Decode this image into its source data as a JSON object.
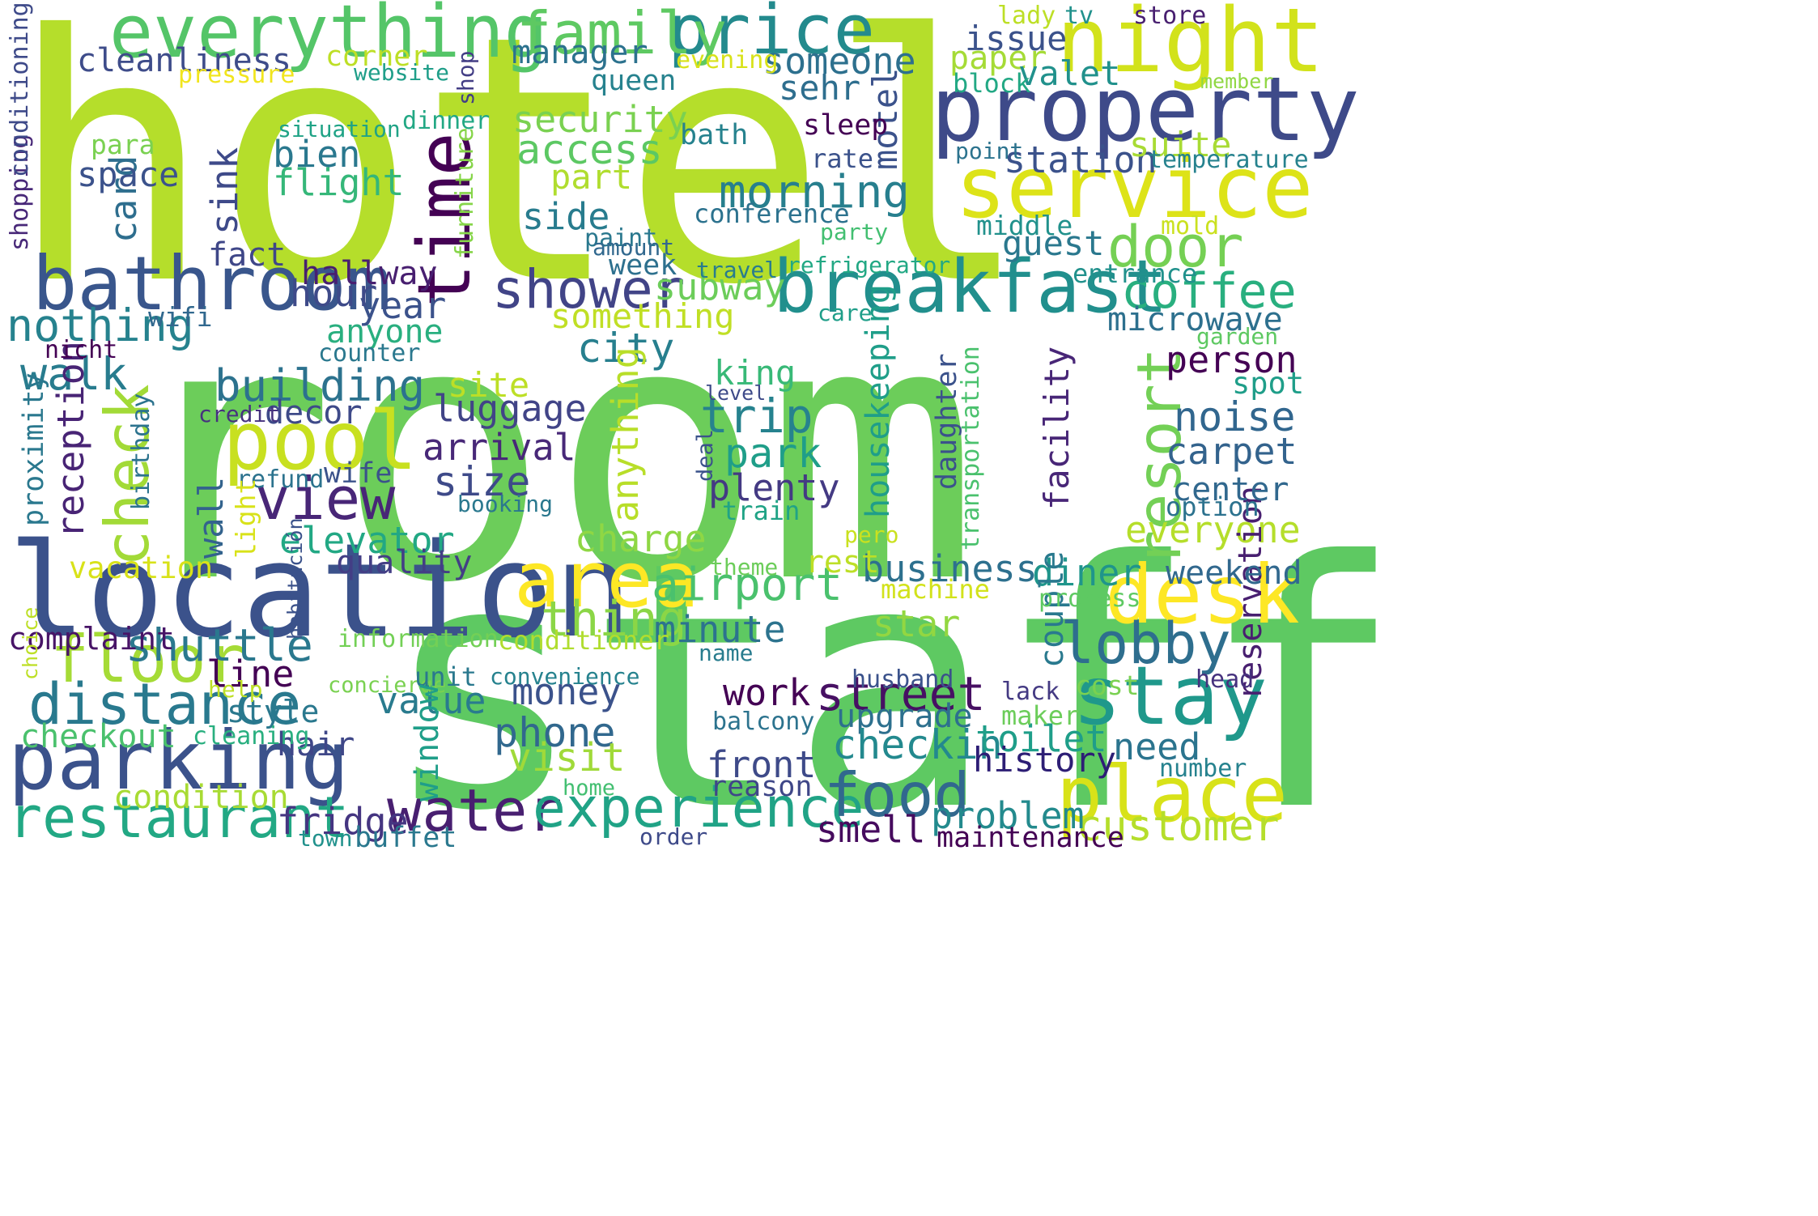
{
  "words": [
    {
      "text": "hotel",
      "color": "#b5de2b"
    },
    {
      "text": "room",
      "color": "#6ccd5a"
    },
    {
      "text": "staff",
      "color": "#5ec962"
    },
    {
      "text": "location",
      "color": "#3b528b"
    },
    {
      "text": "night",
      "color": "#d2e21b"
    },
    {
      "text": "property",
      "color": "#3e4a89"
    },
    {
      "text": "service",
      "color": "#dde318"
    },
    {
      "text": "breakfast",
      "color": "#218f8d"
    },
    {
      "text": "bathroom",
      "color": "#39568c"
    },
    {
      "text": "everything",
      "color": "#54c568"
    },
    {
      "text": "parking",
      "color": "#3b528b"
    },
    {
      "text": "pool",
      "color": "#c8e020"
    },
    {
      "text": "time",
      "color": "#440154"
    },
    {
      "text": "area",
      "color": "#fde725"
    },
    {
      "text": "desk",
      "color": "#fde725"
    },
    {
      "text": "stay",
      "color": "#1f988b"
    },
    {
      "text": "place",
      "color": "#d8e219"
    },
    {
      "text": "price",
      "color": "#238a8d"
    },
    {
      "text": "family",
      "color": "#5ec962"
    },
    {
      "text": "check",
      "color": "#a2da37"
    },
    {
      "text": "resort",
      "color": "#73d056"
    },
    {
      "text": "floor",
      "color": "#a5db36"
    },
    {
      "text": "distance",
      "color": "#29798e"
    },
    {
      "text": "restaurant",
      "color": "#22a884"
    },
    {
      "text": "water",
      "color": "#481f70"
    },
    {
      "text": "experience",
      "color": "#20a386"
    },
    {
      "text": "food",
      "color": "#31688e"
    },
    {
      "text": "lobby",
      "color": "#2e6e8e"
    },
    {
      "text": "view",
      "color": "#482677"
    },
    {
      "text": "shower",
      "color": "#414487"
    },
    {
      "text": "door",
      "color": "#75d054"
    },
    {
      "text": "coffee",
      "color": "#29af7f"
    },
    {
      "text": "airport",
      "color": "#4ac16d"
    },
    {
      "text": "street",
      "color": "#471063"
    },
    {
      "text": "shuttle",
      "color": "#2a788e"
    },
    {
      "text": "morning",
      "color": "#277f8e"
    },
    {
      "text": "building",
      "color": "#2c728e"
    },
    {
      "text": "customer",
      "color": "#b5de2b"
    },
    {
      "text": "nothing",
      "color": "#26828e"
    },
    {
      "text": "walk",
      "color": "#287c8e"
    },
    {
      "text": "cleanliness",
      "color": "#3e4c8a"
    },
    {
      "text": "security",
      "color": "#7ad151"
    },
    {
      "text": "access",
      "color": "#5cc863"
    },
    {
      "text": "trip",
      "color": "#26828e"
    },
    {
      "text": "park",
      "color": "#1f9e89"
    },
    {
      "text": "luggage",
      "color": "#414487"
    },
    {
      "text": "arrival",
      "color": "#482878"
    },
    {
      "text": "size",
      "color": "#3e4a89"
    },
    {
      "text": "plenty",
      "color": "#443a83"
    },
    {
      "text": "site",
      "color": "#bddf26"
    },
    {
      "text": "king",
      "color": "#38b977"
    },
    {
      "text": "elevator",
      "color": "#22a884"
    },
    {
      "text": "charge",
      "color": "#8fd744"
    },
    {
      "text": "business",
      "color": "#2d708e"
    },
    {
      "text": "diner",
      "color": "#1f958b"
    },
    {
      "text": "noise",
      "color": "#31668e"
    },
    {
      "text": "carpet",
      "color": "#33638d"
    },
    {
      "text": "person",
      "color": "#440154"
    },
    {
      "text": "everyone",
      "color": "#b5de2b"
    },
    {
      "text": "thing",
      "color": "#8bd646"
    },
    {
      "text": "minute",
      "color": "#2c738e"
    },
    {
      "text": "star",
      "color": "#93d741"
    },
    {
      "text": "money",
      "color": "#3b528b"
    },
    {
      "text": "phone",
      "color": "#31688e"
    },
    {
      "text": "visit",
      "color": "#a0da39"
    },
    {
      "text": "value",
      "color": "#297b8e"
    },
    {
      "text": "work",
      "color": "#440154"
    },
    {
      "text": "upgrade",
      "color": "#2d708e"
    },
    {
      "text": "checkin",
      "color": "#23898e"
    },
    {
      "text": "toilet",
      "color": "#1f9e89"
    },
    {
      "text": "need",
      "color": "#2b748e"
    },
    {
      "text": "history",
      "color": "#2d1e75"
    },
    {
      "text": "front",
      "color": "#3e4a89"
    },
    {
      "text": "reason",
      "color": "#3f4788"
    },
    {
      "text": "problem",
      "color": "#238a8d"
    },
    {
      "text": "smell",
      "color": "#460b5e"
    },
    {
      "text": "fridge",
      "color": "#453581"
    },
    {
      "text": "condition",
      "color": "#a8db34"
    },
    {
      "text": "checkout",
      "color": "#4ac16d"
    },
    {
      "text": "hair",
      "color": "#3f4788"
    },
    {
      "text": "style",
      "color": "#2a788e"
    },
    {
      "text": "line",
      "color": "#440154"
    },
    {
      "text": "complaint",
      "color": "#481467"
    },
    {
      "text": "quality",
      "color": "#433e85"
    },
    {
      "text": "vacation",
      "color": "#d8e219"
    },
    {
      "text": "reception",
      "color": "#482475"
    },
    {
      "text": "wall",
      "color": "#33638d"
    },
    {
      "text": "proximity",
      "color": "#2a788e"
    },
    {
      "text": "birthday",
      "color": "#2c738e"
    },
    {
      "text": "wife",
      "color": "#3b528b"
    },
    {
      "text": "refund",
      "color": "#2c738e"
    },
    {
      "text": "decor",
      "color": "#3e4a89"
    },
    {
      "text": "credit",
      "color": "#46327e"
    },
    {
      "text": "anyone",
      "color": "#29af7f"
    },
    {
      "text": "counter",
      "color": "#2a788e"
    },
    {
      "text": "city",
      "color": "#277f8e"
    },
    {
      "text": "anything",
      "color": "#b8de29"
    },
    {
      "text": "something",
      "color": "#c0df25"
    },
    {
      "text": "year",
      "color": "#3b528b"
    },
    {
      "text": "hour",
      "color": "#3e4a89"
    },
    {
      "text": "hallway",
      "color": "#481f70"
    },
    {
      "text": "fact",
      "color": "#3f4788"
    },
    {
      "text": "sink",
      "color": "#3e4a89"
    },
    {
      "text": "card",
      "color": "#2e6e8e"
    },
    {
      "text": "space",
      "color": "#3b528b"
    },
    {
      "text": "para",
      "color": "#7ad151"
    },
    {
      "text": "bien",
      "color": "#2a788e"
    },
    {
      "text": "flight",
      "color": "#35b779"
    },
    {
      "text": "situation",
      "color": "#20a386"
    },
    {
      "text": "pressure",
      "color": "#f1e51d"
    },
    {
      "text": "corner",
      "color": "#bddf26"
    },
    {
      "text": "website",
      "color": "#1f9e89"
    },
    {
      "text": "dinner",
      "color": "#22a884"
    },
    {
      "text": "shop",
      "color": "#433e85"
    },
    {
      "text": "manager",
      "color": "#2c728e"
    },
    {
      "text": "queen",
      "color": "#26828e"
    },
    {
      "text": "part",
      "color": "#b0dd2f"
    },
    {
      "text": "side",
      "color": "#287c8e"
    },
    {
      "text": "furniture",
      "color": "#86d549"
    },
    {
      "text": "paint",
      "color": "#2a788e"
    },
    {
      "text": "amount",
      "color": "#31688e"
    },
    {
      "text": "week",
      "color": "#2d708e"
    },
    {
      "text": "subway",
      "color": "#6ccd5a"
    },
    {
      "text": "motel",
      "color": "#3b528b"
    },
    {
      "text": "sleep",
      "color": "#440154"
    },
    {
      "text": "rate",
      "color": "#3b528b"
    },
    {
      "text": "bath",
      "color": "#26828e"
    },
    {
      "text": "conference",
      "color": "#2c728e"
    },
    {
      "text": "travel",
      "color": "#287c8e"
    },
    {
      "text": "level",
      "color": "#3e4a89"
    },
    {
      "text": "deal",
      "color": "#3b528b"
    },
    {
      "text": "train",
      "color": "#20a386"
    },
    {
      "text": "booking",
      "color": "#2a788e"
    },
    {
      "text": "someone",
      "color": "#2d708e"
    },
    {
      "text": "sehr",
      "color": "#2e6e8e"
    },
    {
      "text": "evening",
      "color": "#d8e219"
    },
    {
      "text": "issue",
      "color": "#3b528b"
    },
    {
      "text": "paper",
      "color": "#a5db36"
    },
    {
      "text": "valet",
      "color": "#21918c"
    },
    {
      "text": "station",
      "color": "#3b528b"
    },
    {
      "text": "suite",
      "color": "#a8db34"
    },
    {
      "text": "guest",
      "color": "#2a788e"
    },
    {
      "text": "middle",
      "color": "#21918c"
    },
    {
      "text": "party",
      "color": "#43bf71"
    },
    {
      "text": "refrigerator",
      "color": "#22a884"
    },
    {
      "text": "entrance",
      "color": "#21918c"
    },
    {
      "text": "microwave",
      "color": "#2d708e"
    },
    {
      "text": "care",
      "color": "#1f9e89"
    },
    {
      "text": "housekeeping",
      "color": "#1f9e89"
    },
    {
      "text": "facility",
      "color": "#482677"
    },
    {
      "text": "daughter",
      "color": "#3b528b"
    },
    {
      "text": "transportation",
      "color": "#4ac16d"
    },
    {
      "text": "pero",
      "color": "#cae11f"
    },
    {
      "text": "rest",
      "color": "#bddf26"
    },
    {
      "text": "theme",
      "color": "#6ccd5a"
    },
    {
      "text": "machine",
      "color": "#d2e21b"
    },
    {
      "text": "name",
      "color": "#287c8e"
    },
    {
      "text": "balcony",
      "color": "#2c738e"
    },
    {
      "text": "husband",
      "color": "#3b528b"
    },
    {
      "text": "lack",
      "color": "#443a83"
    },
    {
      "text": "maker",
      "color": "#6ccd5a"
    },
    {
      "text": "home",
      "color": "#43bf71"
    },
    {
      "text": "order",
      "color": "#3e4a89"
    },
    {
      "text": "maintenance",
      "color": "#440154"
    },
    {
      "text": "buffet",
      "color": "#2a788e"
    },
    {
      "text": "town",
      "color": "#21918c"
    },
    {
      "text": "couple",
      "color": "#29798e"
    },
    {
      "text": "reservation",
      "color": "#481f70"
    },
    {
      "text": "weekend",
      "color": "#31688e"
    },
    {
      "text": "process",
      "color": "#5ec962"
    },
    {
      "text": "cost",
      "color": "#7ad151"
    },
    {
      "text": "head",
      "color": "#46327e"
    },
    {
      "text": "number",
      "color": "#26828e"
    },
    {
      "text": "lady",
      "color": "#bddf26"
    },
    {
      "text": "tv",
      "color": "#21918c"
    },
    {
      "text": "store",
      "color": "#481f70"
    },
    {
      "text": "member",
      "color": "#90d743"
    },
    {
      "text": "block",
      "color": "#22a884"
    },
    {
      "text": "point",
      "color": "#2c738e"
    },
    {
      "text": "temperature",
      "color": "#26828e"
    },
    {
      "text": "mold",
      "color": "#cae11f"
    },
    {
      "text": "garden",
      "color": "#5ec962"
    },
    {
      "text": "spot",
      "color": "#1f9e89"
    },
    {
      "text": "center",
      "color": "#31688e"
    },
    {
      "text": "option",
      "color": "#2c728e"
    },
    {
      "text": "shopping",
      "color": "#482878"
    },
    {
      "text": "conditioning",
      "color": "#3e4a89"
    },
    {
      "text": "wifi",
      "color": "#31688e"
    },
    {
      "text": "nicht",
      "color": "#440154"
    },
    {
      "text": "habitación",
      "color": "#3b528b"
    },
    {
      "text": "information",
      "color": "#73d056"
    },
    {
      "text": "conditioner",
      "color": "#b0dd2f"
    },
    {
      "text": "choice",
      "color": "#bddf26"
    },
    {
      "text": "concierge",
      "color": "#7ad151"
    },
    {
      "text": "unit",
      "color": "#2a788e"
    },
    {
      "text": "help",
      "color": "#bddf26"
    },
    {
      "text": "convenience",
      "color": "#26828e"
    },
    {
      "text": "cleaning",
      "color": "#29af7f"
    },
    {
      "text": "window",
      "color": "#1f9e89"
    },
    {
      "text": "light",
      "color": "#d8e219"
    }
  ]
}
